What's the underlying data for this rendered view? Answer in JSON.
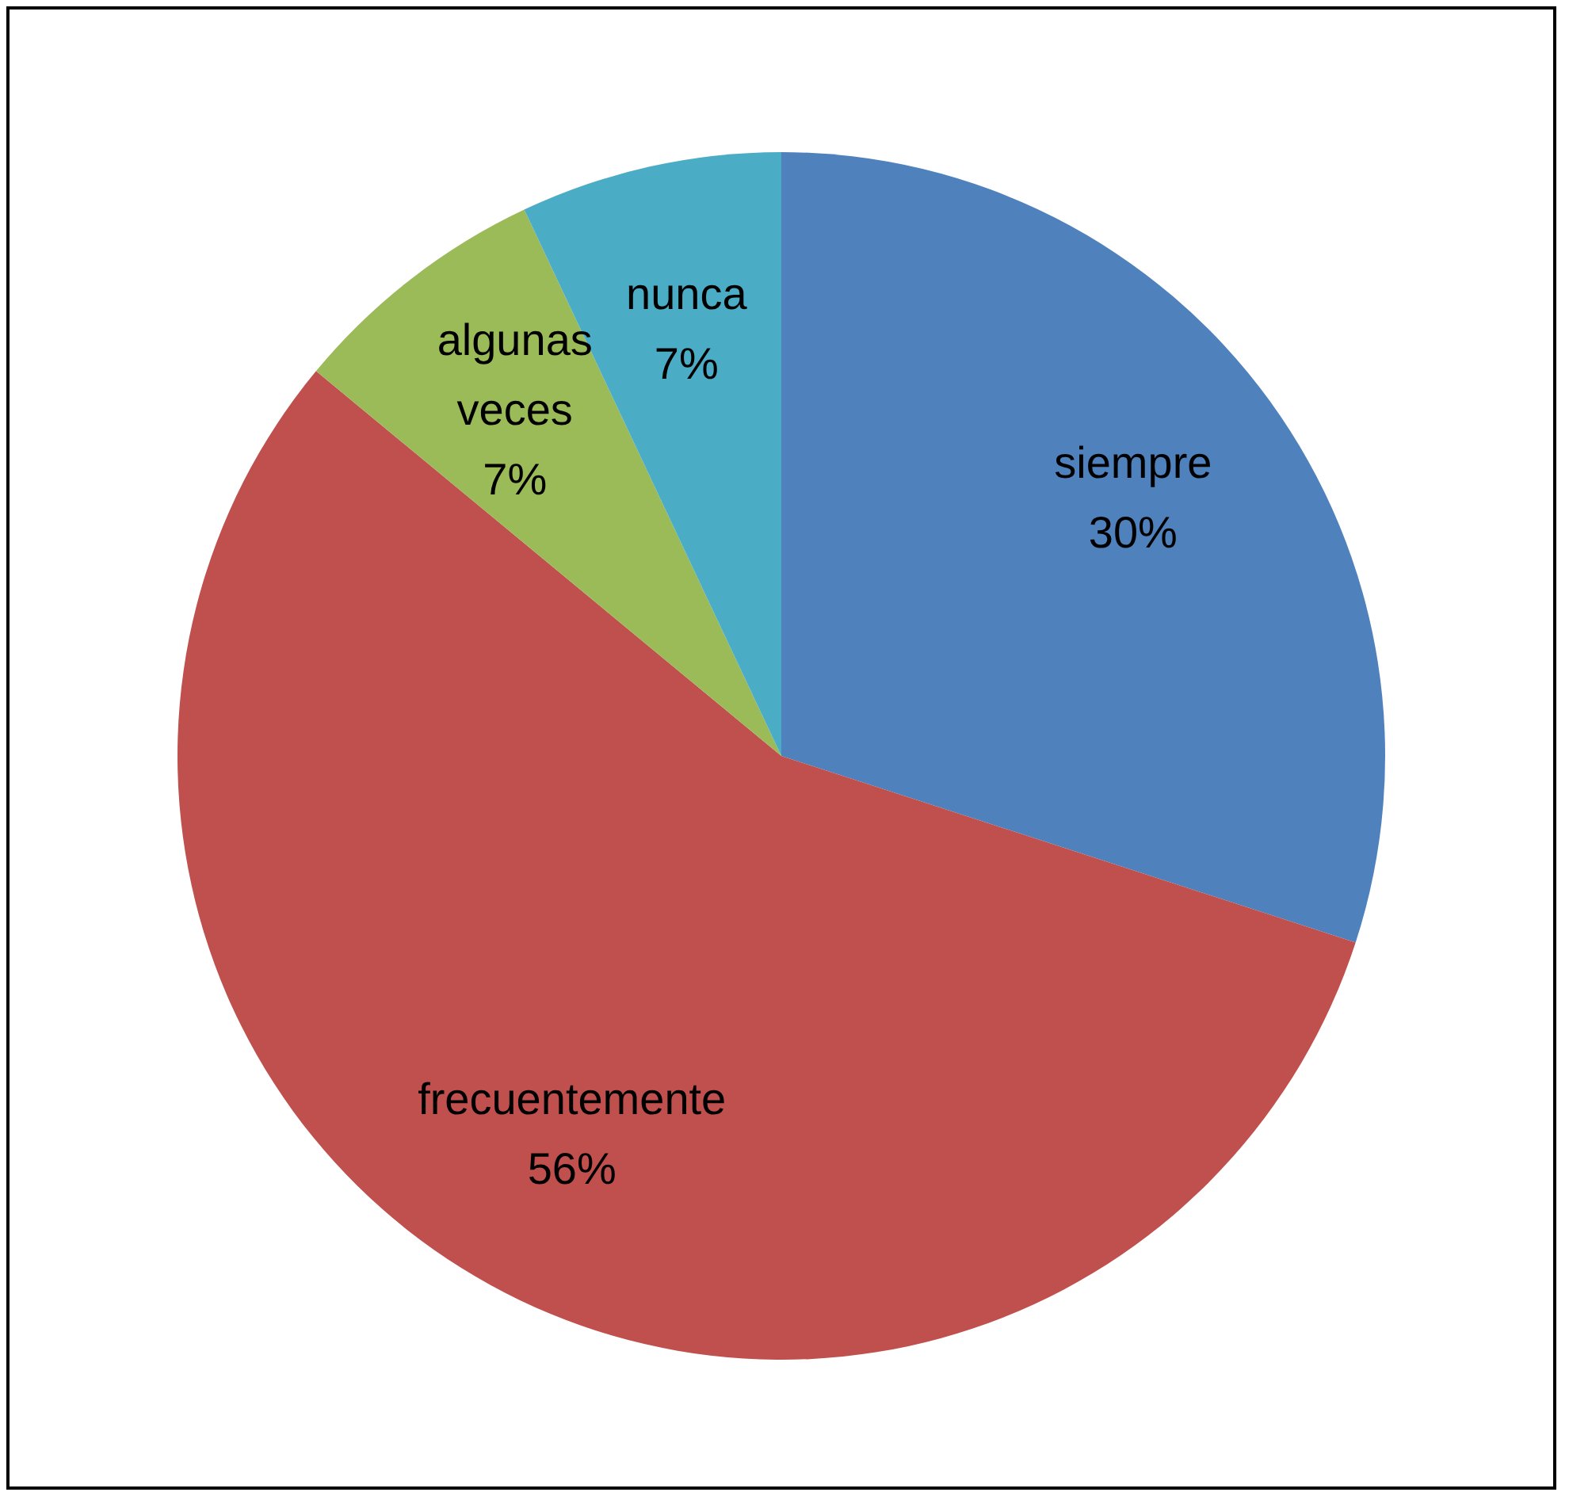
{
  "chart_data": {
    "type": "pie",
    "categories": [
      "siempre",
      "frecuentemente",
      "algunas veces",
      "nunca"
    ],
    "values": [
      30,
      56,
      7,
      7
    ],
    "colors": [
      "#4f81bd",
      "#c0504d",
      "#9bbb59",
      "#4bacc6"
    ],
    "value_labels": [
      "30%",
      "56%",
      "7%",
      "7%"
    ],
    "legend": false
  }
}
